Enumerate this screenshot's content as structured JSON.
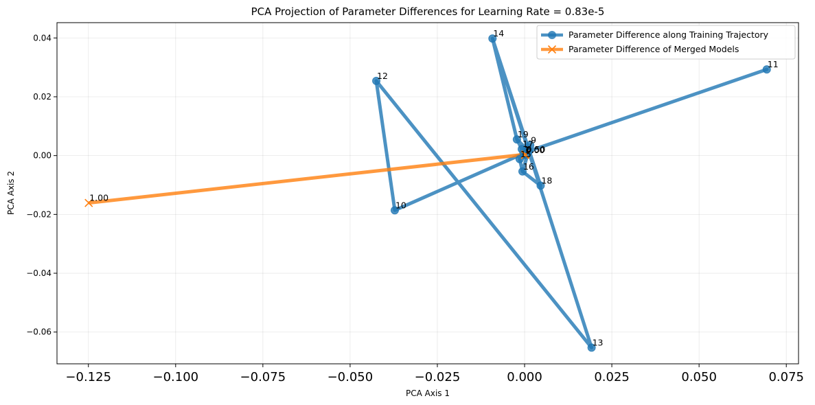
{
  "chart_data": {
    "type": "line",
    "title": "PCA Projection of Parameter Differences for Learning Rate = 0.83e-5",
    "xlabel": "PCA Axis 1",
    "ylabel": "PCA Axis 2",
    "xlim": [
      -0.134,
      0.0785
    ],
    "ylim": [
      -0.0708,
      0.0452
    ],
    "grid": true,
    "legend_position": "top-right",
    "x_ticks": [
      -0.125,
      -0.1,
      -0.075,
      -0.05,
      -0.025,
      0.0,
      0.025,
      0.05,
      0.075
    ],
    "x_tick_labels": [
      "−0.125",
      "−0.100",
      "−0.075",
      "−0.050",
      "−0.025",
      "0.000",
      "0.025",
      "0.050",
      "0.075"
    ],
    "y_ticks": [
      -0.06,
      -0.04,
      -0.02,
      0.0,
      0.02,
      0.04
    ],
    "y_tick_labels": [
      "−0.06",
      "−0.04",
      "−0.02",
      "0.00",
      "0.02",
      "0.04"
    ],
    "series": [
      {
        "name": "Parameter Difference along Training Trajectory",
        "color": "#1f77b4",
        "marker": "circle",
        "points": [
          {
            "label": "0",
            "x": 0.0012,
            "y": 0.0015
          },
          {
            "label": "1",
            "x": 0.0005,
            "y": 0.0008
          },
          {
            "label": "2",
            "x": 0.0006,
            "y": 0.0011
          },
          {
            "label": "3",
            "x": 0.0003,
            "y": 0.0003
          },
          {
            "label": "4",
            "x": 0.0001,
            "y": 0.0004
          },
          {
            "label": "5",
            "x": 0.0009,
            "y": 0.0016
          },
          {
            "label": "6",
            "x": 0.0005,
            "y": 0.0018
          },
          {
            "label": "7",
            "x": -0.0002,
            "y": 0.0001
          },
          {
            "label": "8",
            "x": 0.0004,
            "y": 0.0007
          },
          {
            "label": "9",
            "x": 0.0016,
            "y": 0.0035
          },
          {
            "label": "10",
            "x": -0.0372,
            "y": -0.0186
          },
          {
            "label": "11",
            "x": 0.0694,
            "y": 0.0293
          },
          {
            "label": "12",
            "x": -0.0425,
            "y": 0.0254
          },
          {
            "label": "13",
            "x": 0.0192,
            "y": -0.0653
          },
          {
            "label": "14",
            "x": -0.0092,
            "y": 0.0398
          },
          {
            "label": "15",
            "x": -0.0014,
            "y": -0.0012
          },
          {
            "label": "16",
            "x": -0.0006,
            "y": -0.0054
          },
          {
            "label": "17",
            "x": -0.0008,
            "y": 0.0022
          },
          {
            "label": "18",
            "x": 0.0046,
            "y": -0.0102
          },
          {
            "label": "19",
            "x": -0.0022,
            "y": 0.0055
          }
        ],
        "path_order": [
          "10",
          "0",
          "9",
          "16",
          "0",
          "11",
          "0",
          "10",
          "12",
          "13",
          "14",
          "19",
          "17",
          "15",
          "16",
          "18",
          "14",
          "19",
          "0"
        ]
      },
      {
        "name": "Parameter Difference of Merged Models",
        "color": "#ff7f0e",
        "marker": "x",
        "points": [
          {
            "label": "1.00",
            "x": -0.1249,
            "y": -0.0161
          },
          {
            "label": "0.50",
            "x": 0.0003,
            "y": 0.0004
          },
          {
            "label": "0.00",
            "x": 0.0001,
            "y": 0.0002
          }
        ],
        "path_order": [
          "1.00",
          "0.50",
          "0.00"
        ]
      }
    ],
    "visible_point_labels": [
      {
        "series": 0,
        "label": "14"
      },
      {
        "series": 0,
        "label": "12"
      },
      {
        "series": 0,
        "label": "11"
      },
      {
        "series": 0,
        "label": "19"
      },
      {
        "series": 0,
        "label": "9"
      },
      {
        "series": 0,
        "label": "17"
      },
      {
        "series": 0,
        "label": "7"
      },
      {
        "series": 0,
        "label": "15"
      },
      {
        "series": 0,
        "label": "16"
      },
      {
        "series": 0,
        "label": "18"
      },
      {
        "series": 0,
        "label": "10"
      },
      {
        "series": 0,
        "label": "13"
      },
      {
        "series": 1,
        "label": "1.00"
      },
      {
        "series": 1,
        "label": "0.50"
      },
      {
        "series": 1,
        "label": "0.00"
      }
    ]
  }
}
